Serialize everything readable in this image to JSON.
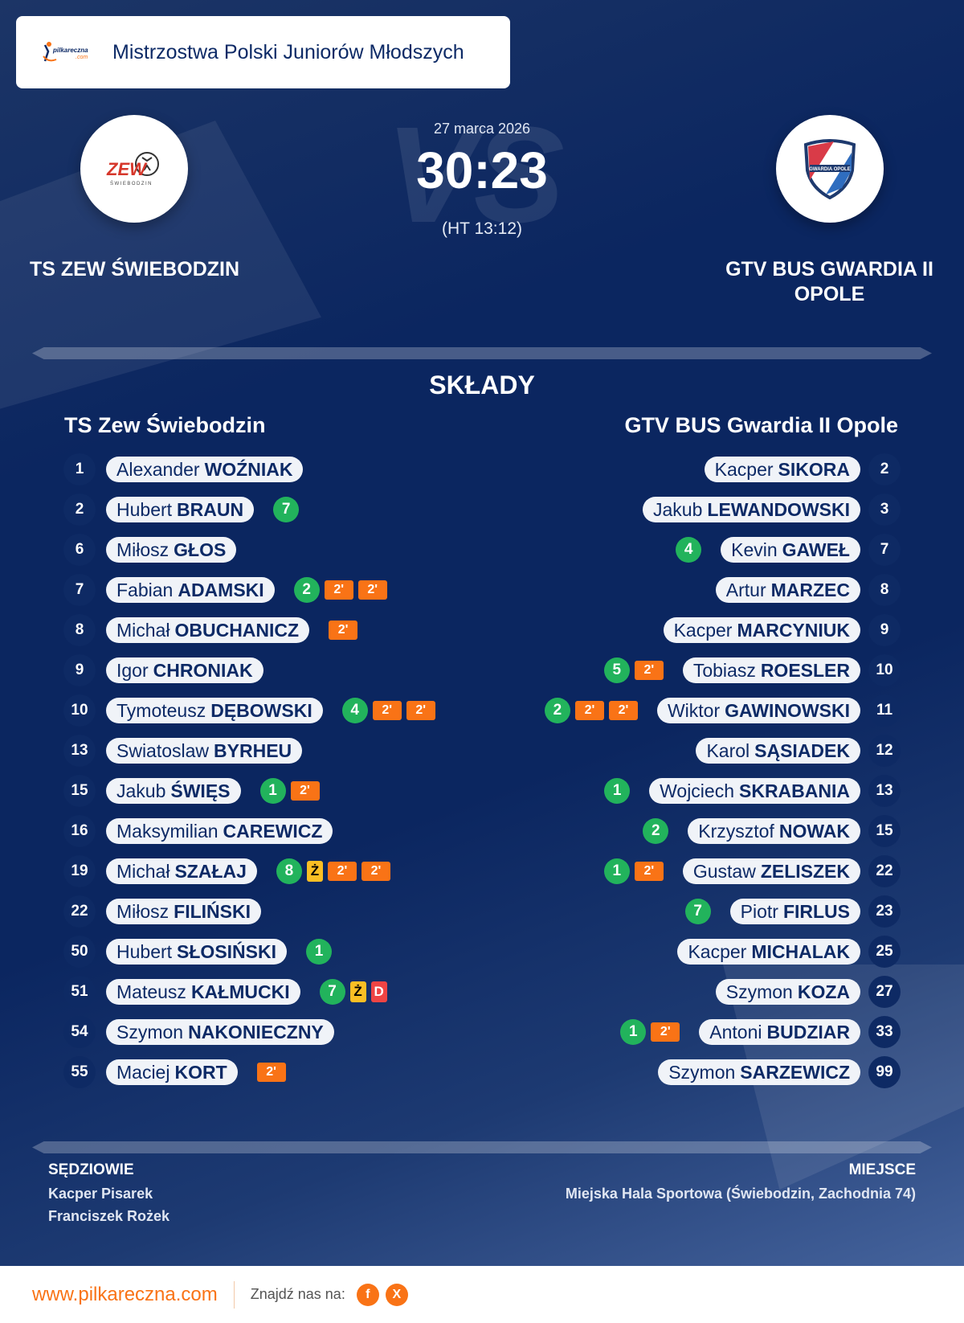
{
  "header": {
    "logo": "pilkareczna.com",
    "title": "Mistrzostwa Polski Juniorów Młodszych"
  },
  "match": {
    "date": "27 marca 2026",
    "score": "30:23",
    "halftime": "(HT 13:12)",
    "vs_watermark": "VS"
  },
  "home": {
    "name_upper": "TS ZEW ŚWIEBODZIN",
    "name": "TS Zew Świebodzin",
    "crest_text": "ZEW ŚWIEBODZIN"
  },
  "away": {
    "name_upper": "GTV BUS GWARDIA II OPOLE",
    "name": "GTV BUS Gwardia II Opole",
    "crest_text": "GWARDIA OPOLE"
  },
  "lineups_title": "SKŁADY",
  "home_players": [
    {
      "no": "1",
      "first": "Alexander",
      "last": "WOŹNIAK",
      "goals": null,
      "cards": []
    },
    {
      "no": "2",
      "first": "Hubert",
      "last": "BRAUN",
      "goals": "7",
      "cards": []
    },
    {
      "no": "6",
      "first": "Miłosz",
      "last": "GŁOS",
      "goals": null,
      "cards": []
    },
    {
      "no": "7",
      "first": "Fabian",
      "last": "ADAMSKI",
      "goals": "2",
      "cards": [
        "2'",
        "2'"
      ]
    },
    {
      "no": "8",
      "first": "Michał",
      "last": "OBUCHANICZ",
      "goals": null,
      "cards": [
        "2'"
      ]
    },
    {
      "no": "9",
      "first": "Igor",
      "last": "CHRONIAK",
      "goals": null,
      "cards": []
    },
    {
      "no": "10",
      "first": "Tymoteusz",
      "last": "DĘBOWSKI",
      "goals": "4",
      "cards": [
        "2'",
        "2'"
      ]
    },
    {
      "no": "13",
      "first": "Swiatoslaw",
      "last": "BYRHEU",
      "goals": null,
      "cards": []
    },
    {
      "no": "15",
      "first": "Jakub",
      "last": "ŚWIĘS",
      "goals": "1",
      "cards": [
        "2'"
      ]
    },
    {
      "no": "16",
      "first": "Maksymilian",
      "last": "CAREWICZ",
      "goals": null,
      "cards": []
    },
    {
      "no": "19",
      "first": "Michał",
      "last": "SZAŁAJ",
      "goals": "8",
      "cards": [
        "Ż",
        "2'",
        "2'"
      ]
    },
    {
      "no": "22",
      "first": "Miłosz",
      "last": "FILIŃSKI",
      "goals": null,
      "cards": []
    },
    {
      "no": "50",
      "first": "Hubert",
      "last": "SŁOSIŃSKI",
      "goals": "1",
      "cards": []
    },
    {
      "no": "51",
      "first": "Mateusz",
      "last": "KAŁMUCKI",
      "goals": "7",
      "cards": [
        "Ż",
        "D"
      ]
    },
    {
      "no": "54",
      "first": "Szymon",
      "last": "NAKONIECZNY",
      "goals": null,
      "cards": []
    },
    {
      "no": "55",
      "first": "Maciej",
      "last": "KORT",
      "goals": null,
      "cards": [
        "2'"
      ]
    }
  ],
  "away_players": [
    {
      "no": "2",
      "first": "Kacper",
      "last": "SIKORA",
      "goals": null,
      "cards": []
    },
    {
      "no": "3",
      "first": "Jakub",
      "last": "LEWANDOWSKI",
      "goals": null,
      "cards": []
    },
    {
      "no": "7",
      "first": "Kevin",
      "last": "GAWEŁ",
      "goals": "4",
      "cards": []
    },
    {
      "no": "8",
      "first": "Artur",
      "last": "MARZEC",
      "goals": null,
      "cards": []
    },
    {
      "no": "9",
      "first": "Kacper",
      "last": "MARCYNIUK",
      "goals": null,
      "cards": []
    },
    {
      "no": "10",
      "first": "Tobiasz",
      "last": "ROESLER",
      "goals": "5",
      "cards": [
        "2'"
      ]
    },
    {
      "no": "11",
      "first": "Wiktor",
      "last": "GAWINOWSKI",
      "goals": "2",
      "cards": [
        "2'",
        "2'"
      ]
    },
    {
      "no": "12",
      "first": "Karol",
      "last": "SĄSIADEK",
      "goals": null,
      "cards": []
    },
    {
      "no": "13",
      "first": "Wojciech",
      "last": "SKRABANIA",
      "goals": "1",
      "cards": []
    },
    {
      "no": "15",
      "first": "Krzysztof",
      "last": "NOWAK",
      "goals": "2",
      "cards": []
    },
    {
      "no": "22",
      "first": "Gustaw",
      "last": "ZELISZEK",
      "goals": "1",
      "cards": [
        "2'"
      ]
    },
    {
      "no": "23",
      "first": "Piotr",
      "last": "FIRLUS",
      "goals": "7",
      "cards": []
    },
    {
      "no": "25",
      "first": "Kacper",
      "last": "MICHALAK",
      "goals": null,
      "cards": []
    },
    {
      "no": "27",
      "first": "Szymon",
      "last": "KOZA",
      "goals": null,
      "cards": []
    },
    {
      "no": "33",
      "first": "Antoni",
      "last": "BUDZIAR",
      "goals": "1",
      "cards": [
        "2'"
      ]
    },
    {
      "no": "99",
      "first": "Szymon",
      "last": "SARZEWICZ",
      "goals": null,
      "cards": []
    }
  ],
  "referees": {
    "label": "SĘDZIOWIE",
    "names": [
      "Kacper Pisarek",
      "Franciszek Rożek"
    ]
  },
  "venue": {
    "label": "MIEJSCE",
    "value": "Miejska Hala Sportowa (Świebodzin, Zachodnia 74)"
  },
  "footer": {
    "site": "www.pilkareczna.com",
    "find_us": "Znajdź nas na:",
    "social": [
      {
        "icon": "facebook-icon",
        "glyph": "f"
      },
      {
        "icon": "x-icon",
        "glyph": "X"
      }
    ]
  },
  "colors": {
    "goal": "#22b35c",
    "suspension": "#f97316",
    "yellow": "#fbbf24",
    "red": "#ef4444",
    "navy": "#0b2660"
  }
}
